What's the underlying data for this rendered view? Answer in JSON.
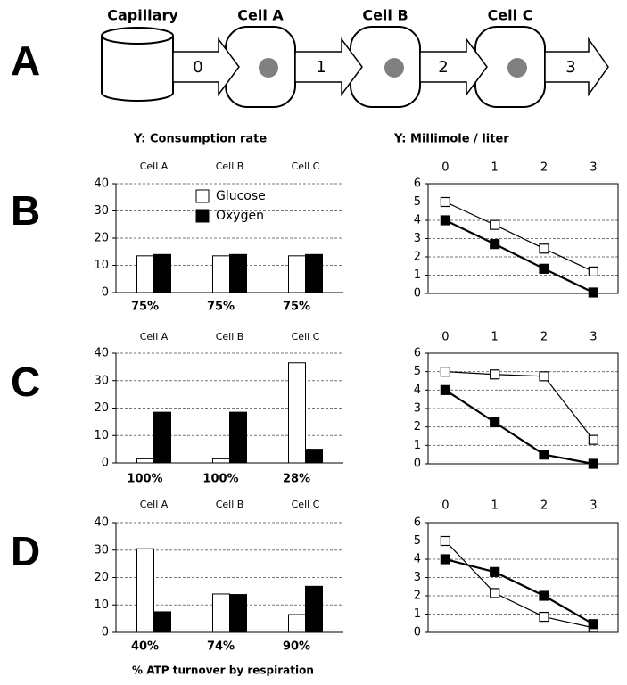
{
  "diagram": {
    "label": "A",
    "nodes": [
      "Capillary",
      "Cell A",
      "Cell B",
      "Cell C"
    ],
    "arrows": [
      "0",
      "1",
      "2",
      "3"
    ]
  },
  "column_titles": [
    "Y: Consumption rate",
    "Y: Millimole / liter"
  ],
  "row_labels": [
    "B",
    "C",
    "D"
  ],
  "footer": "% ATP turnover by respiration",
  "chart_data": [
    {
      "type": "bar",
      "categories": [
        "Cell A",
        "Cell B",
        "Cell C"
      ],
      "series": [
        {
          "name": "Glucose",
          "color": "#ffffff",
          "values": [
            13.5,
            13.5,
            13.5
          ]
        },
        {
          "name": "Oxygen",
          "color": "#000000",
          "values": [
            14,
            14,
            14
          ]
        }
      ],
      "annotations": [
        "75%",
        "75%",
        "75%"
      ],
      "ylim": [
        0,
        40
      ],
      "yticks": [
        0,
        10,
        20,
        30,
        40
      ],
      "grid": true,
      "legend": "upper center"
    },
    {
      "type": "line",
      "x": [
        0,
        1,
        2,
        3
      ],
      "xlim": [
        -0.35,
        3.5
      ],
      "xticks": [
        0,
        1,
        2,
        3
      ],
      "series": [
        {
          "color": "#ffffff",
          "values": [
            5,
            3.75,
            2.45,
            1.2
          ]
        },
        {
          "color": "#000000",
          "values": [
            4,
            2.7,
            1.35,
            0.05
          ]
        }
      ],
      "ylim": [
        0,
        6
      ],
      "yticks": [
        0,
        1,
        2,
        3,
        4,
        5,
        6
      ],
      "grid": true
    },
    {
      "type": "bar",
      "categories": [
        "Cell A",
        "Cell B",
        "Cell C"
      ],
      "series": [
        {
          "color": "#ffffff",
          "values": [
            1.5,
            1.5,
            36.5
          ]
        },
        {
          "color": "#000000",
          "values": [
            18.5,
            18.5,
            5
          ]
        }
      ],
      "annotations": [
        "100%",
        "100%",
        "28%"
      ],
      "ylim": [
        0,
        40
      ],
      "yticks": [
        0,
        10,
        20,
        30,
        40
      ],
      "grid": true
    },
    {
      "type": "line",
      "x": [
        0,
        1,
        2,
        3
      ],
      "xlim": [
        -0.35,
        3.5
      ],
      "xticks": [
        0,
        1,
        2,
        3
      ],
      "series": [
        {
          "color": "#ffffff",
          "values": [
            5,
            4.85,
            4.75,
            1.3
          ]
        },
        {
          "color": "#000000",
          "values": [
            4,
            2.25,
            0.5,
            0
          ]
        }
      ],
      "ylim": [
        0,
        6
      ],
      "yticks": [
        0,
        1,
        2,
        3,
        4,
        5,
        6
      ],
      "grid": true
    },
    {
      "type": "bar",
      "categories": [
        "Cell A",
        "Cell B",
        "Cell C"
      ],
      "series": [
        {
          "color": "#ffffff",
          "values": [
            30.5,
            14,
            6.5
          ]
        },
        {
          "color": "#000000",
          "values": [
            7.5,
            13.8,
            16.8
          ]
        }
      ],
      "annotations": [
        "40%",
        "74%",
        "90%"
      ],
      "ylim": [
        0,
        40
      ],
      "yticks": [
        0,
        10,
        20,
        30,
        40
      ],
      "grid": true
    },
    {
      "type": "line",
      "x": [
        0,
        1,
        2,
        3
      ],
      "xlim": [
        -0.35,
        3.5
      ],
      "xticks": [
        0,
        1,
        2,
        3
      ],
      "series": [
        {
          "color": "#ffffff",
          "values": [
            5,
            2.15,
            0.85,
            0.25
          ]
        },
        {
          "color": "#000000",
          "values": [
            4,
            3.3,
            2,
            0.45
          ]
        }
      ],
      "ylim": [
        0,
        6
      ],
      "yticks": [
        0,
        1,
        2,
        3,
        4,
        5,
        6
      ],
      "grid": true
    }
  ]
}
